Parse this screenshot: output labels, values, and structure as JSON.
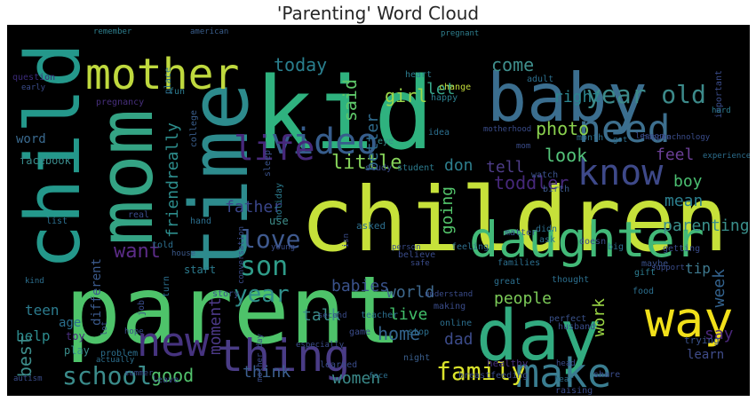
{
  "figure": {
    "title": "'Parenting' Word Cloud",
    "background": "#000000",
    "colormap": "viridis"
  },
  "words": [
    {
      "text": "children",
      "color": "#c6e13a"
    },
    {
      "text": "parent",
      "color": "#4ec36a"
    },
    {
      "text": "kid",
      "color": "#2fb27f"
    },
    {
      "text": "baby",
      "color": "#3b6e8f"
    },
    {
      "text": "time",
      "color": "#2d8b8d"
    },
    {
      "text": "mom",
      "color": "#34a384"
    },
    {
      "text": "child",
      "color": "#24988b"
    },
    {
      "text": "day",
      "color": "#32ab80"
    },
    {
      "text": "daughter",
      "color": "#42b978"
    },
    {
      "text": "way",
      "color": "#f1e01a"
    },
    {
      "text": "mother",
      "color": "#bfd93e"
    },
    {
      "text": "make",
      "color": "#3a7d90"
    },
    {
      "text": "thing",
      "color": "#4a3c86"
    },
    {
      "text": "new",
      "color": "#46337f"
    },
    {
      "text": "video",
      "color": "#375d8c"
    },
    {
      "text": "need",
      "color": "#3d6f8e"
    },
    {
      "text": "know",
      "color": "#3e4989"
    },
    {
      "text": "life",
      "color": "#46287a"
    },
    {
      "text": "family",
      "color": "#d9e22b"
    },
    {
      "text": "year old",
      "color": "#3c8a8a"
    },
    {
      "text": "school",
      "color": "#3b8c8b"
    },
    {
      "text": "son",
      "color": "#2f9c89"
    },
    {
      "text": "love",
      "color": "#3f5a8f"
    },
    {
      "text": "year",
      "color": "#2f8f8b"
    },
    {
      "text": "today",
      "color": "#2a7f8e"
    },
    {
      "text": "girl",
      "color": "#9ed84a"
    },
    {
      "text": "come",
      "color": "#3f8e8c"
    },
    {
      "text": "photo",
      "color": "#8ad14e"
    },
    {
      "text": "right",
      "color": "#2b848e"
    },
    {
      "text": "look",
      "color": "#54c47a"
    },
    {
      "text": "feel",
      "color": "#6b3f97"
    },
    {
      "text": "toddler",
      "color": "#46287a"
    },
    {
      "text": "little",
      "color": "#86d35a"
    },
    {
      "text": "better",
      "color": "#2f6b8e"
    },
    {
      "text": "said",
      "color": "#5fc86a"
    },
    {
      "text": "let",
      "color": "#38a88b"
    },
    {
      "text": "tell",
      "color": "#4e3d89"
    },
    {
      "text": "don",
      "color": "#2e7f8e"
    },
    {
      "text": "father",
      "color": "#3a468a"
    },
    {
      "text": "friendreally",
      "color": "#2d8d8c"
    },
    {
      "text": "word",
      "color": "#3a6a8f"
    },
    {
      "text": "boy",
      "color": "#4bbf71"
    },
    {
      "text": "mean",
      "color": "#2c7f8e"
    },
    {
      "text": "going",
      "color": "#54c66c"
    },
    {
      "text": "want",
      "color": "#5b2c87"
    },
    {
      "text": "babies",
      "color": "#3a528b"
    },
    {
      "text": "teen",
      "color": "#2c7b8e"
    },
    {
      "text": "talk",
      "color": "#3c8e8b"
    },
    {
      "text": "home",
      "color": "#33638d"
    },
    {
      "text": "help",
      "color": "#2c8a8c"
    },
    {
      "text": "moment",
      "color": "#4d3a89"
    },
    {
      "text": "world",
      "color": "#3f6a8f"
    },
    {
      "text": "live",
      "color": "#42bf6a"
    },
    {
      "text": "people",
      "color": "#7ccb58"
    },
    {
      "text": "parenting",
      "color": "#3a8f8b"
    },
    {
      "text": "work",
      "color": "#9ad644"
    },
    {
      "text": "week",
      "color": "#33628d"
    },
    {
      "text": "tip",
      "color": "#3e7a8f"
    },
    {
      "text": "best",
      "color": "#3d8d8b"
    },
    {
      "text": "dad",
      "color": "#3c4b8a"
    },
    {
      "text": "good",
      "color": "#52c36d"
    },
    {
      "text": "think",
      "color": "#3c5f8f"
    },
    {
      "text": "women",
      "color": "#3b8a8a"
    },
    {
      "text": "say",
      "color": "#49277a"
    },
    {
      "text": "learn",
      "color": "#3f4c8a"
    },
    {
      "text": "age",
      "color": "#2a6f8e"
    },
    {
      "text": "toy",
      "color": "#4a2d7f"
    },
    {
      "text": "play",
      "color": "#3a8d8b"
    },
    {
      "text": "facebook",
      "color": "#3a8b8c"
    },
    {
      "text": "question",
      "color": "#3a2a78"
    },
    {
      "text": "pregnancy",
      "color": "#472f7c"
    },
    {
      "text": "remember",
      "color": "#2e7f8e"
    },
    {
      "text": "american",
      "color": "#3a5e8c"
    },
    {
      "text": "pregnant",
      "color": "#2f7f8e"
    },
    {
      "text": "important",
      "color": "#3a4c8a"
    },
    {
      "text": "hard",
      "color": "#2c7b8e"
    },
    {
      "text": "experience",
      "color": "#2d6f8e"
    },
    {
      "text": "birth",
      "color": "#3c5a8c"
    },
    {
      "text": "different",
      "color": "#3b5a8c"
    },
    {
      "text": "start",
      "color": "#2c7b8e"
    },
    {
      "text": "house",
      "color": "#3c5a8c"
    },
    {
      "text": "use",
      "color": "#3f8f8b"
    },
    {
      "text": "asked",
      "color": "#2c6f8e"
    },
    {
      "text": "feeling",
      "color": "#2f6f8e"
    },
    {
      "text": "trying",
      "color": "#3a528b"
    },
    {
      "text": "healthy",
      "color": "#46337f"
    },
    {
      "text": "hope",
      "color": "#3a4c8a"
    },
    {
      "text": "problem",
      "color": "#2c6f8e"
    },
    {
      "text": "night",
      "color": "#3a5e8c"
    },
    {
      "text": "change",
      "color": "#c4dc3a"
    },
    {
      "text": "happy",
      "color": "#2c7f8e"
    },
    {
      "text": "eye",
      "color": "#3a8d8b"
    },
    {
      "text": "student",
      "color": "#2c7b8e"
    },
    {
      "text": "study",
      "color": "#3a4c8a"
    },
    {
      "text": "holiday",
      "color": "#2c7b8e"
    },
    {
      "text": "sleep",
      "color": "#3a528b"
    },
    {
      "text": "college",
      "color": "#3a5e8c"
    },
    {
      "text": "place",
      "color": "#2c6f8e"
    },
    {
      "text": "fun",
      "color": "#2c7b8e"
    },
    {
      "text": "idea",
      "color": "#2c6f8e"
    },
    {
      "text": "heart",
      "color": "#2c7b8e"
    },
    {
      "text": "adult",
      "color": "#2c6f8e"
    },
    {
      "text": "month",
      "color": "#2c6f8e"
    },
    {
      "text": "watch",
      "color": "#3a528b"
    },
    {
      "text": "told",
      "color": "#2c6f8e"
    },
    {
      "text": "turn",
      "color": "#2c6f8e"
    },
    {
      "text": "job",
      "color": "#3a4c8a"
    },
    {
      "text": "story",
      "color": "#3a528b"
    },
    {
      "text": "real",
      "color": "#3a4c8a"
    },
    {
      "text": "list",
      "color": "#2c6f8e"
    },
    {
      "text": "hand",
      "color": "#2c6f8e"
    },
    {
      "text": "isn",
      "color": "#3a4c8a"
    },
    {
      "text": "matter",
      "color": "#3a528b"
    },
    {
      "text": "didn",
      "color": "#2c6f8e"
    },
    {
      "text": "ask",
      "color": "#2c6f8e"
    },
    {
      "text": "doesn",
      "color": "#3a4c8a"
    },
    {
      "text": "big",
      "color": "#2c6f8e"
    },
    {
      "text": "families",
      "color": "#2c6f8e"
    },
    {
      "text": "getting",
      "color": "#3a4c8a"
    },
    {
      "text": "maybe",
      "color": "#3a528b"
    },
    {
      "text": "food",
      "color": "#2c6f8e"
    },
    {
      "text": "support",
      "color": "#3a4c8a"
    },
    {
      "text": "gift",
      "color": "#2c7b8e"
    },
    {
      "text": "thought",
      "color": "#2c6f8e"
    },
    {
      "text": "great",
      "color": "#2c6f8e"
    },
    {
      "text": "online",
      "color": "#2c6f8e"
    },
    {
      "text": "making",
      "color": "#3a4c8a"
    },
    {
      "text": "husband",
      "color": "#3a4c8a"
    },
    {
      "text": "perfect",
      "color": "#3a528b"
    },
    {
      "text": "teacher",
      "color": "#2c6f8e"
    },
    {
      "text": "game",
      "color": "#3a4c8a"
    },
    {
      "text": "believe",
      "color": "#3a4c8a"
    },
    {
      "text": "learned",
      "color": "#3a4c8a"
    },
    {
      "text": "stop",
      "color": "#2c6f8e"
    },
    {
      "text": "share",
      "color": "#3a4c8a"
    },
    {
      "text": "breastfeeding",
      "color": "#3a4c8a"
    },
    {
      "text": "raising",
      "color": "#3a4c8a"
    },
    {
      "text": "hear",
      "color": "#2c6f8e"
    },
    {
      "text": "head",
      "color": "#3a4c8a"
    },
    {
      "text": "leave",
      "color": "#3a4c8a"
    },
    {
      "text": "autism",
      "color": "#3a4c8a"
    },
    {
      "text": "face",
      "color": "#2c6f8e"
    },
    {
      "text": "especially",
      "color": "#3a4c8a"
    },
    {
      "text": "second",
      "color": "#3a4c8a"
    },
    {
      "text": "young",
      "color": "#3a4c8a"
    },
    {
      "text": "lot",
      "color": "#3a4c8a"
    },
    {
      "text": "safe",
      "color": "#3a4c8a"
    },
    {
      "text": "mother day",
      "color": "#3a4c8a"
    },
    {
      "text": "kind",
      "color": "#2c6f8e"
    },
    {
      "text": "got",
      "color": "#2c6f8e"
    },
    {
      "text": "happen",
      "color": "#3a4c8a"
    },
    {
      "text": "mom",
      "color": "#3a4c8a"
    },
    {
      "text": "motherhood",
      "color": "#3a4c8a"
    },
    {
      "text": "early",
      "color": "#3a4c8a"
    },
    {
      "text": "conversation",
      "color": "#3a4c8a"
    },
    {
      "text": "actually",
      "color": "#2c6f8e"
    },
    {
      "text": "summer",
      "color": "#3a4c8a"
    },
    {
      "text": "lesson",
      "color": "#3a4c8a"
    },
    {
      "text": "technology",
      "color": "#3a4c8a"
    },
    {
      "text": "person",
      "color": "#3a4c8a"
    },
    {
      "text": "understand",
      "color": "#3a4c8a"
    }
  ]
}
